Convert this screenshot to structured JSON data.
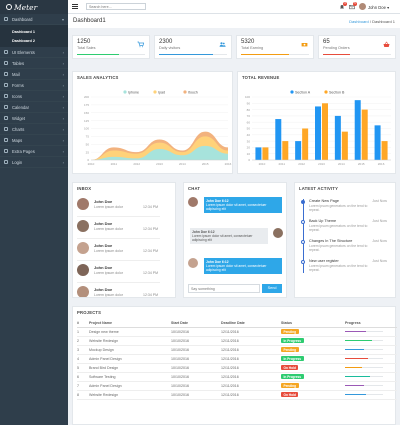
{
  "brand": {
    "name": "Meter"
  },
  "sidebar": {
    "items": [
      {
        "label": "Dashboard",
        "icon": "dashboard-icon"
      },
      {
        "label": "UI Elements",
        "icon": "ui-icon"
      },
      {
        "label": "Tables",
        "icon": "table-icon"
      },
      {
        "label": "Mail",
        "icon": "mail-icon"
      },
      {
        "label": "Forms",
        "icon": "forms-icon"
      },
      {
        "label": "Icons",
        "icon": "icons-icon"
      },
      {
        "label": "Calendar",
        "icon": "calendar-icon"
      },
      {
        "label": "Widget",
        "icon": "widget-icon"
      },
      {
        "label": "Charts",
        "icon": "chart-icon"
      },
      {
        "label": "Maps",
        "icon": "map-icon"
      },
      {
        "label": "Extra Pages",
        "icon": "pages-icon"
      },
      {
        "label": "Login",
        "icon": "login-icon"
      }
    ],
    "submenu": [
      "Dashboard 1",
      "Dashboard 2"
    ]
  },
  "topbar": {
    "search_placeholder": "Search here...",
    "notif1_count": "3",
    "notif2_count": "5",
    "user_name": "John Doe"
  },
  "page": {
    "title": "Dashboard1",
    "breadcrumb": [
      "Dashboard",
      "Dashboard 1"
    ]
  },
  "stats": [
    {
      "value": "1250",
      "label": "Total Sales",
      "color": "#2ecc71",
      "progress": 0.62,
      "icon": "cart-icon"
    },
    {
      "value": "2300",
      "label": "Daily visitors",
      "color": "#3498db",
      "progress": 0.8,
      "icon": "users-icon"
    },
    {
      "value": "5320",
      "label": "Total Earning",
      "color": "#f39c12",
      "progress": 0.7,
      "icon": "money-icon"
    },
    {
      "value": "65",
      "label": "Pending Orders",
      "color": "#e74c3c",
      "progress": 0.4,
      "icon": "basket-icon"
    }
  ],
  "sales_analytics": {
    "title": "SALES ANALYTICS",
    "legend": [
      "Iphone",
      "Ipad",
      "Itouch"
    ],
    "colors": [
      "#a7e3dc",
      "#ffd27a",
      "#f2b27e"
    ]
  },
  "total_revenue": {
    "title": "TOTAL REVENUE",
    "legend": [
      "Section A",
      "Section B"
    ],
    "colors": [
      "#2196f3",
      "#ffa726"
    ]
  },
  "chart_data": [
    {
      "type": "area",
      "x": [
        "2010",
        "2011",
        "2012",
        "2013",
        "2014",
        "2015",
        "2016"
      ],
      "series": [
        {
          "name": "Iphone",
          "values": [
            0,
            10,
            5,
            35,
            15,
            45,
            20
          ]
        },
        {
          "name": "Ipad",
          "values": [
            0,
            30,
            20,
            55,
            25,
            75,
            30
          ]
        },
        {
          "name": "Itouch",
          "values": [
            0,
            40,
            25,
            65,
            30,
            90,
            40
          ]
        }
      ],
      "title": "SALES ANALYTICS",
      "yticks": [
        0,
        25,
        50,
        75,
        100,
        125,
        150,
        175,
        200
      ],
      "ylim": [
        0,
        200
      ],
      "legend_position": "top"
    },
    {
      "type": "bar",
      "categories": [
        "2010",
        "2011",
        "2012",
        "2013",
        "2014",
        "2015",
        "2016"
      ],
      "series": [
        {
          "name": "Section A",
          "values": [
            20,
            65,
            30,
            85,
            70,
            95,
            55
          ]
        },
        {
          "name": "Section B",
          "values": [
            20,
            30,
            50,
            90,
            45,
            80,
            30
          ]
        }
      ],
      "title": "TOTAL REVENUE",
      "yticks": [
        0,
        10,
        20,
        30,
        40,
        50,
        60,
        70,
        80,
        90,
        100
      ],
      "ylim": [
        0,
        100
      ],
      "legend_position": "top"
    }
  ],
  "inbox": {
    "title": "INBOX",
    "messages": [
      {
        "name": "John Doe",
        "text": "Lorem ipsum dolor",
        "time": "12:34 PM",
        "color": "#a0796a"
      },
      {
        "name": "John Doe",
        "text": "Lorem ipsum dolor",
        "time": "12:34 PM",
        "color": "#8a7060"
      },
      {
        "name": "John Doe",
        "text": "Lorem ipsum dolor",
        "time": "12:34 PM",
        "color": "#c4a28f"
      },
      {
        "name": "John Doe",
        "text": "Lorem ipsum dolor",
        "time": "12:34 PM",
        "color": "#7e6558"
      },
      {
        "name": "John Doe",
        "text": "Lorem ipsum dolor",
        "time": "12:34 PM",
        "color": "#b38f7b"
      }
    ]
  },
  "chat": {
    "title": "CHAT",
    "messages": [
      {
        "who": "John Doe 6:12",
        "text": "Lorem ipsum dolor sit amet, consectetuer adipiscing elit",
        "side": "left"
      },
      {
        "who": "John Doe 6:12",
        "text": "Lorem ipsum dolor sit amet, consectetuer adipiscing elit",
        "side": "right"
      },
      {
        "who": "John Doe 6:12",
        "text": "Lorem ipsum dolor sit amet, consectetuer adipiscing elit",
        "side": "left"
      }
    ],
    "input_placeholder": "Say something",
    "send_label": "Send"
  },
  "activity": {
    "title": "LATEST ACTIVITY",
    "items": [
      {
        "title": "Create New Page",
        "when": "Just Now",
        "desc": "Lorem ipsum generators on the tend to repeat."
      },
      {
        "title": "Back Up Theme",
        "when": "Just Now",
        "desc": "Lorem ipsum generators on the tend to repeat."
      },
      {
        "title": "Changes In The Structure",
        "when": "Just Now",
        "desc": "Lorem ipsum generators on the tend to repeat."
      },
      {
        "title": "New user register",
        "when": "Just Now",
        "desc": "Lorem ipsum generators on the tend to repeat."
      }
    ]
  },
  "projects": {
    "title": "PROJECTS",
    "headers": [
      "#",
      "Project Name",
      "Start Date",
      "Deadline Date",
      "Status",
      "Progress"
    ],
    "rows": [
      {
        "id": "1",
        "name": "Design new theme",
        "start": "10/10/2016",
        "deadline": "12/11/2016",
        "status": "Pending",
        "status_color": "#f5a623",
        "progress": 0.55,
        "bar_color": "#9b59b6"
      },
      {
        "id": "2",
        "name": "Website Redesign",
        "start": "10/10/2016",
        "deadline": "12/11/2016",
        "status": "In Progress",
        "status_color": "#2ecc71",
        "progress": 0.7,
        "bar_color": "#2ecc71"
      },
      {
        "id": "3",
        "name": "Mockup Design",
        "start": "10/10/2016",
        "deadline": "12/11/2016",
        "status": "Pending",
        "status_color": "#f5a623",
        "progress": 0.5,
        "bar_color": "#3498db"
      },
      {
        "id": "4",
        "name": "Admin Panel Design",
        "start": "10/10/2016",
        "deadline": "12/11/2016",
        "status": "In Progress",
        "status_color": "#2ecc71",
        "progress": 0.6,
        "bar_color": "#e74c3c"
      },
      {
        "id": "5",
        "name": "Brand Bird Design",
        "start": "10/10/2016",
        "deadline": "12/11/2016",
        "status": "On Hold",
        "status_color": "#e74c3c",
        "progress": 0.45,
        "bar_color": "#f39c12"
      },
      {
        "id": "6",
        "name": "Software Testing",
        "start": "10/10/2016",
        "deadline": "12/11/2016",
        "status": "In Progress",
        "status_color": "#2ecc71",
        "progress": 0.65,
        "bar_color": "#1abc9c"
      },
      {
        "id": "7",
        "name": "Admin Panel Design",
        "start": "10/10/2016",
        "deadline": "12/11/2016",
        "status": "Pending",
        "status_color": "#f5a623",
        "progress": 0.5,
        "bar_color": "#9b59b6"
      },
      {
        "id": "8",
        "name": "Website Redesign",
        "start": "10/10/2016",
        "deadline": "12/11/2016",
        "status": "On Hold",
        "status_color": "#e74c3c",
        "progress": 0.55,
        "bar_color": "#3498db"
      }
    ]
  }
}
